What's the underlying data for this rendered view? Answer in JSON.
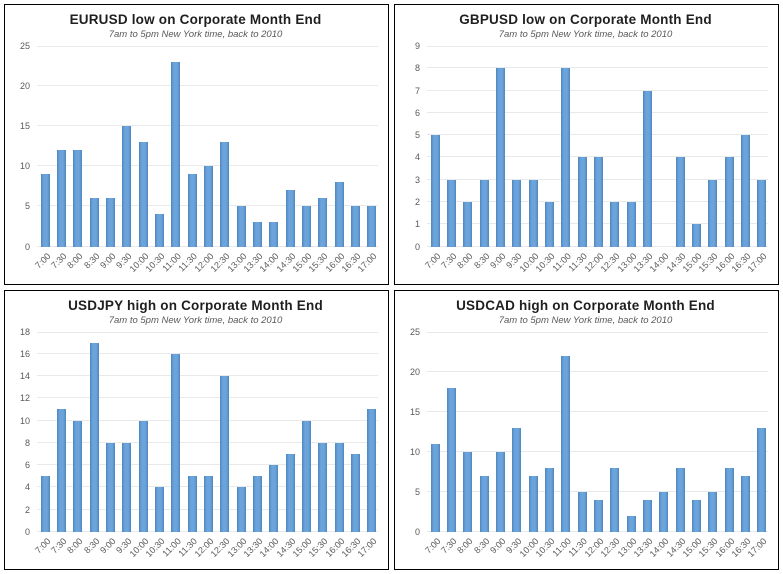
{
  "chart_data": [
    {
      "type": "bar",
      "title": "EURUSD low on Corporate Month End",
      "subtitle": "7am to 5pm New York time, back to 2010",
      "categories": [
        "7:00",
        "7:30",
        "8:00",
        "8:30",
        "9:00",
        "9:30",
        "10:00",
        "10:30",
        "11:00",
        "11:30",
        "12:00",
        "12:30",
        "13:00",
        "13:30",
        "14:00",
        "14:30",
        "15:00",
        "15:30",
        "16:00",
        "16:30",
        "17:00"
      ],
      "values": [
        9,
        12,
        12,
        6,
        6,
        15,
        13,
        4,
        23,
        9,
        10,
        13,
        5,
        3,
        3,
        7,
        5,
        6,
        8,
        5,
        5
      ],
      "xlabel": "",
      "ylabel": "",
      "ylim": [
        0,
        25
      ],
      "ytick_step": 5,
      "grid": true,
      "legend": false
    },
    {
      "type": "bar",
      "title": "GBPUSD low on Corporate Month End",
      "subtitle": "7am to 5pm New York time, back to 2010",
      "categories": [
        "7:00",
        "7:30",
        "8:00",
        "8:30",
        "9:00",
        "9:30",
        "10:00",
        "10:30",
        "11:00",
        "11:30",
        "12:00",
        "12:30",
        "13:00",
        "13:30",
        "14:00",
        "14:30",
        "15:00",
        "15:30",
        "16:00",
        "16:30",
        "17:00"
      ],
      "values": [
        5,
        3,
        2,
        3,
        8,
        3,
        3,
        2,
        8,
        4,
        4,
        2,
        2,
        7,
        0,
        4,
        1,
        3,
        4,
        5,
        3
      ],
      "xlabel": "",
      "ylabel": "",
      "ylim": [
        0,
        9
      ],
      "ytick_step": 1,
      "grid": true,
      "legend": false
    },
    {
      "type": "bar",
      "title": "USDJPY high on Corporate Month End",
      "subtitle": "7am to 5pm New York time, back to 2010",
      "categories": [
        "7:00",
        "7:30",
        "8:00",
        "8:30",
        "9:00",
        "9:30",
        "10:00",
        "10:30",
        "11:00",
        "11:30",
        "12:00",
        "12:30",
        "13:00",
        "13:30",
        "14:00",
        "14:30",
        "15:00",
        "15:30",
        "16:00",
        "16:30",
        "17:00"
      ],
      "values": [
        5,
        11,
        10,
        17,
        8,
        8,
        10,
        4,
        16,
        5,
        5,
        14,
        4,
        5,
        6,
        7,
        10,
        8,
        8,
        7,
        11
      ],
      "xlabel": "",
      "ylabel": "",
      "ylim": [
        0,
        18
      ],
      "ytick_step": 2,
      "grid": true,
      "legend": false
    },
    {
      "type": "bar",
      "title": "USDCAD high on Corporate Month End",
      "subtitle": "7am to 5pm New York time, back to 2010",
      "categories": [
        "7:00",
        "7:30",
        "8:00",
        "8:30",
        "9:00",
        "9:30",
        "10:00",
        "10:30",
        "11:00",
        "11:30",
        "12:00",
        "12:30",
        "13:00",
        "13:30",
        "14:00",
        "14:30",
        "15:00",
        "15:30",
        "16:00",
        "16:30",
        "17:00"
      ],
      "values": [
        11,
        18,
        10,
        7,
        10,
        13,
        7,
        8,
        22,
        5,
        4,
        8,
        2,
        4,
        5,
        8,
        4,
        5,
        8,
        7,
        13
      ],
      "xlabel": "",
      "ylabel": "",
      "ylim": [
        0,
        25
      ],
      "ytick_step": 5,
      "grid": true,
      "legend": false
    }
  ],
  "colors": {
    "bar_fill": "#5B9BD5",
    "bar_edge": "#4D86C0",
    "gridline": "#E9E9E9",
    "tick_label": "#595959",
    "title_text": "#1F1F1F",
    "panel_border": "#000000"
  }
}
